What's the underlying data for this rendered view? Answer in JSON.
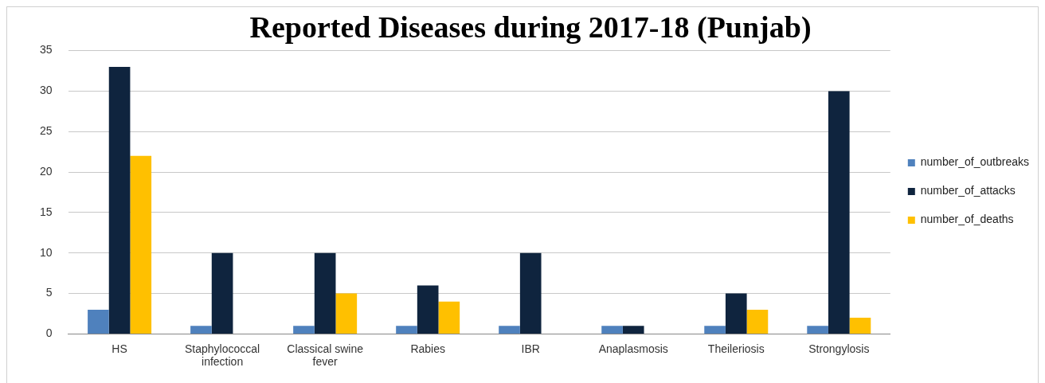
{
  "chart_data": {
    "type": "bar",
    "title": "Reported Diseases during 2017-18 (Punjab)",
    "categories": [
      "HS",
      "Staphylococcal infection",
      "Classical swine fever",
      "Rabies",
      "IBR",
      "Anaplasmosis",
      "Theileriosis",
      "Strongylosis"
    ],
    "series": [
      {
        "name": "number_of_outbreaks",
        "color": "#4f81bd",
        "values": [
          3,
          1,
          1,
          1,
          1,
          1,
          1,
          1
        ]
      },
      {
        "name": "number_of_attacks",
        "color": "#0f243e",
        "values": [
          33,
          10,
          10,
          6,
          10,
          1,
          5,
          30
        ]
      },
      {
        "name": "number_of_deaths",
        "color": "#ffc000",
        "values": [
          22,
          0,
          5,
          4,
          0,
          0,
          3,
          2
        ]
      }
    ],
    "ylim": [
      0,
      35
    ],
    "yticks": [
      0,
      5,
      10,
      15,
      20,
      25,
      30,
      35
    ],
    "grid": "y",
    "legend": "right"
  }
}
